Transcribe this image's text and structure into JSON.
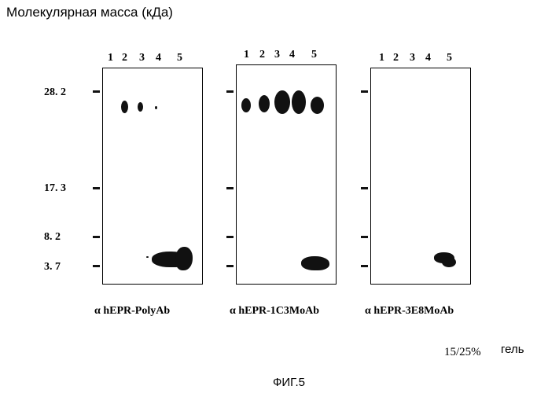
{
  "figure": {
    "y_axis_title": "Молекулярная масса (кДа)",
    "mw_markers": [
      "28. 2",
      "17. 3",
      "8. 2",
      "3. 7"
    ],
    "panels": [
      {
        "lanes": [
          "1",
          "2",
          "3",
          "4",
          "5"
        ],
        "caption": "α hEPR-PolyAb"
      },
      {
        "lanes": [
          "1",
          "2",
          "3",
          "4",
          "5"
        ],
        "caption": "α hEPR-1C3MoAb"
      },
      {
        "lanes": [
          "1",
          "2",
          "3",
          "4",
          "5"
        ],
        "caption": "α hEPR-3E8MoAb"
      }
    ],
    "gel_note_number": "15/25%",
    "gel_note_word": "гель",
    "figure_label": "ФИГ.5"
  }
}
